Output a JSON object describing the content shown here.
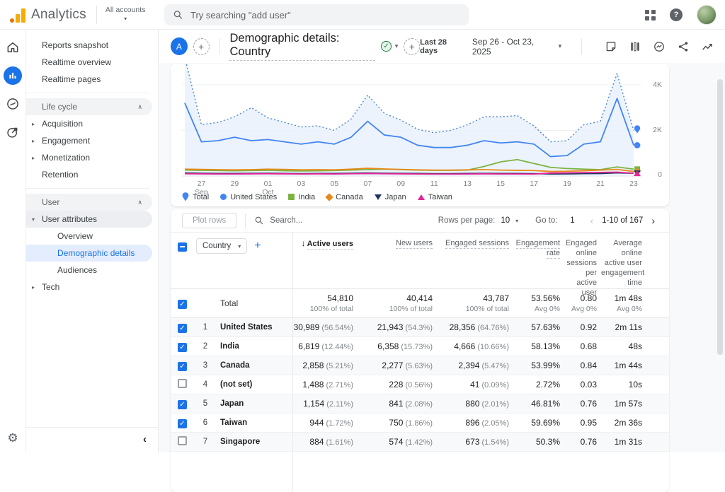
{
  "topbar": {
    "brand": "Analytics",
    "accounts_label": "All accounts",
    "search_placeholder": "Try searching \"add user\""
  },
  "rail": {
    "items": [
      "Home",
      "Reports",
      "Explore",
      "Advertising"
    ],
    "admin": "Admin"
  },
  "sidebar": {
    "top": [
      "Reports snapshot",
      "Realtime overview",
      "Realtime pages"
    ],
    "lifecycle": {
      "label": "Life cycle",
      "items": [
        "Acquisition",
        "Engagement",
        "Monetization",
        "Retention"
      ]
    },
    "user": {
      "label": "User",
      "attributes": {
        "label": "User attributes",
        "children": [
          "Overview",
          "Demographic details",
          "Audiences"
        ]
      },
      "tech": "Tech"
    }
  },
  "report": {
    "avatar_letter": "A",
    "title": "Demographic details: Country",
    "date_preset": "Last 28 days",
    "date_range": "Sep 26 - Oct 23, 2025"
  },
  "chart_data": {
    "type": "line",
    "x": [
      "Sep 26",
      "Sep 27",
      "Sep 28",
      "Sep 29",
      "Sep 30",
      "Oct 1",
      "Oct 2",
      "Oct 3",
      "Oct 4",
      "Oct 5",
      "Oct 6",
      "Oct 7",
      "Oct 8",
      "Oct 9",
      "Oct 10",
      "Oct 11",
      "Oct 12",
      "Oct 13",
      "Oct 14",
      "Oct 15",
      "Oct 16",
      "Oct 17",
      "Oct 18",
      "Oct 19",
      "Oct 20",
      "Oct 21",
      "Oct 22",
      "Oct 23"
    ],
    "ylim": [
      0,
      4650
    ],
    "yticks": [
      {
        "label": "4K",
        "v": 4000
      },
      {
        "label": "2K",
        "v": 2000
      },
      {
        "label": "0",
        "v": 0
      }
    ],
    "xticks": [
      {
        "i": 1,
        "label": "27",
        "sub": "Sep"
      },
      {
        "i": 3,
        "label": "29"
      },
      {
        "i": 5,
        "label": "01",
        "sub": "Oct"
      },
      {
        "i": 7,
        "label": "03"
      },
      {
        "i": 9,
        "label": "05"
      },
      {
        "i": 11,
        "label": "07"
      },
      {
        "i": 13,
        "label": "09"
      },
      {
        "i": 15,
        "label": "11"
      },
      {
        "i": 17,
        "label": "13"
      },
      {
        "i": 19,
        "label": "15"
      },
      {
        "i": 21,
        "label": "17"
      },
      {
        "i": 23,
        "label": "19"
      },
      {
        "i": 25,
        "label": "21"
      },
      {
        "i": 27,
        "label": "23"
      }
    ],
    "series": [
      {
        "name": "Total",
        "color": "#4a84cf",
        "style": "dotted",
        "marker": "pin",
        "area": true,
        "values": [
          5200,
          2250,
          2350,
          2600,
          3000,
          2550,
          2350,
          2150,
          2200,
          2000,
          2500,
          3550,
          2750,
          2450,
          2050,
          1900,
          2000,
          2250,
          2600,
          2600,
          2650,
          2200,
          1500,
          1550,
          2250,
          2400,
          4500,
          2000
        ]
      },
      {
        "name": "United States",
        "color": "#4285f4",
        "style": "solid",
        "marker": "circle",
        "values": [
          3200,
          1500,
          1550,
          1700,
          1550,
          1600,
          1500,
          1400,
          1500,
          1400,
          1700,
          2400,
          1800,
          1700,
          1350,
          1250,
          1250,
          1350,
          1550,
          1450,
          1500,
          1400,
          850,
          900,
          1400,
          1500,
          3400,
          1350
        ]
      },
      {
        "name": "India",
        "color": "#7cb342",
        "style": "solid",
        "marker": "square",
        "values": [
          260,
          250,
          240,
          230,
          240,
          250,
          230,
          220,
          230,
          240,
          260,
          280,
          300,
          280,
          260,
          250,
          250,
          260,
          420,
          620,
          720,
          550,
          380,
          330,
          300,
          280,
          400,
          300
        ]
      },
      {
        "name": "Canada",
        "color": "#e8891a",
        "style": "solid",
        "marker": "diamond",
        "values": [
          300,
          290,
          280,
          270,
          280,
          300,
          290,
          270,
          280,
          270,
          300,
          340,
          310,
          290,
          270,
          260,
          260,
          270,
          280,
          260,
          250,
          240,
          200,
          210,
          230,
          260,
          290,
          200
        ]
      },
      {
        "name": "Japan",
        "color": "#20355f",
        "style": "solid",
        "marker": "triangle-down",
        "values": [
          130,
          120,
          110,
          110,
          115,
          120,
          110,
          105,
          110,
          110,
          120,
          130,
          120,
          115,
          110,
          105,
          105,
          110,
          115,
          110,
          110,
          105,
          90,
          95,
          105,
          110,
          140,
          120
        ]
      },
      {
        "name": "Taiwan",
        "color": "#e52592",
        "style": "solid",
        "marker": "triangle-up",
        "values": [
          100,
          95,
          90,
          90,
          95,
          100,
          95,
          90,
          95,
          90,
          100,
          110,
          100,
          95,
          90,
          85,
          85,
          90,
          95,
          90,
          90,
          85,
          130,
          140,
          150,
          160,
          170,
          120
        ]
      }
    ],
    "legend_position": "bottom",
    "grid": true
  },
  "toolbar": {
    "plot_rows": "Plot rows",
    "search_placeholder": "Search...",
    "rows_per_page_label": "Rows per page:",
    "rows_per_page_value": "10",
    "goto_label": "Go to:",
    "goto_value": "1",
    "pagination": "1-10 of 167"
  },
  "table": {
    "dimension": "Country",
    "headers": [
      "Active users",
      "New users",
      "Engaged sessions",
      "Engagement rate",
      "Engaged online sessions per active user",
      "Average online active user engagement time"
    ],
    "total": {
      "label": "Total",
      "metrics": [
        {
          "v": "54,810",
          "sub": "100% of total"
        },
        {
          "v": "40,414",
          "sub": "100% of total"
        },
        {
          "v": "43,787",
          "sub": "100% of total"
        },
        {
          "v": "53.56%",
          "sub": "Avg 0%"
        },
        {
          "v": "0.80",
          "sub": "Avg 0%"
        },
        {
          "v": "1m 48s",
          "sub": "Avg 0%"
        }
      ]
    },
    "rows": [
      {
        "num": "1",
        "country": "United States",
        "checked": true,
        "shaded": true,
        "metrics": [
          {
            "v": "30,989",
            "s": "56.54%"
          },
          {
            "v": "21,943",
            "s": "54.3%"
          },
          {
            "v": "28,356",
            "s": "64.76%"
          },
          {
            "v": "57.63%"
          },
          {
            "v": "0.92"
          },
          {
            "v": "2m 11s"
          }
        ]
      },
      {
        "num": "2",
        "country": "India",
        "checked": true,
        "shaded": false,
        "metrics": [
          {
            "v": "6,819",
            "s": "12.44%"
          },
          {
            "v": "6,358",
            "s": "15.73%"
          },
          {
            "v": "4,666",
            "s": "10.66%"
          },
          {
            "v": "58.13%"
          },
          {
            "v": "0.68"
          },
          {
            "v": "48s"
          }
        ]
      },
      {
        "num": "3",
        "country": "Canada",
        "checked": true,
        "shaded": true,
        "metrics": [
          {
            "v": "2,858",
            "s": "5.21%"
          },
          {
            "v": "2,277",
            "s": "5.63%"
          },
          {
            "v": "2,394",
            "s": "5.47%"
          },
          {
            "v": "53.99%"
          },
          {
            "v": "0.84"
          },
          {
            "v": "1m 44s"
          }
        ]
      },
      {
        "num": "4",
        "country": "(not set)",
        "checked": false,
        "shaded": false,
        "metrics": [
          {
            "v": "1,488",
            "s": "2.71%"
          },
          {
            "v": "228",
            "s": "0.56%"
          },
          {
            "v": "41",
            "s": "0.09%"
          },
          {
            "v": "2.72%"
          },
          {
            "v": "0.03"
          },
          {
            "v": "10s"
          }
        ]
      },
      {
        "num": "5",
        "country": "Japan",
        "checked": true,
        "shaded": true,
        "metrics": [
          {
            "v": "1,154",
            "s": "2.11%"
          },
          {
            "v": "841",
            "s": "2.08%"
          },
          {
            "v": "880",
            "s": "2.01%"
          },
          {
            "v": "46.81%"
          },
          {
            "v": "0.76"
          },
          {
            "v": "1m 57s"
          }
        ]
      },
      {
        "num": "6",
        "country": "Taiwan",
        "checked": true,
        "shaded": false,
        "metrics": [
          {
            "v": "944",
            "s": "1.72%"
          },
          {
            "v": "750",
            "s": "1.86%"
          },
          {
            "v": "896",
            "s": "2.05%"
          },
          {
            "v": "59.69%"
          },
          {
            "v": "0.95"
          },
          {
            "v": "2m 36s"
          }
        ]
      },
      {
        "num": "7",
        "country": "Singapore",
        "checked": false,
        "shaded": true,
        "metrics": [
          {
            "v": "884",
            "s": "1.61%"
          },
          {
            "v": "574",
            "s": "1.42%"
          },
          {
            "v": "673",
            "s": "1.54%"
          },
          {
            "v": "50.3%"
          },
          {
            "v": "0.76"
          },
          {
            "v": "1m 31s"
          }
        ]
      }
    ]
  }
}
